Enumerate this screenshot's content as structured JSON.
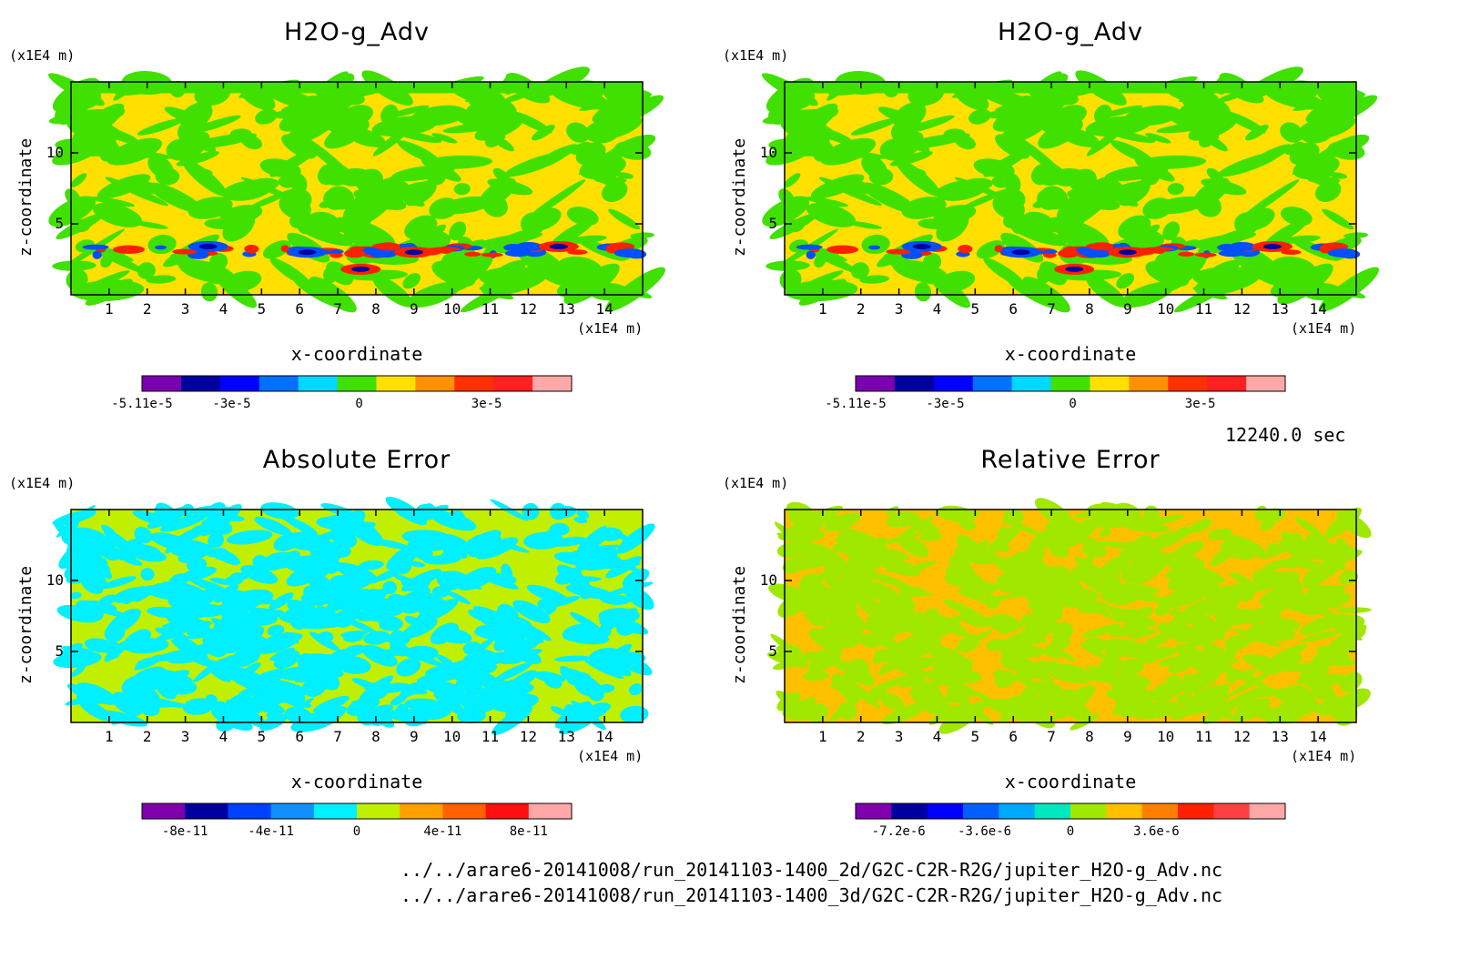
{
  "footer": {
    "line1": "../../arare6-20141008/run_20141103-1400_2d/G2C-C2R-R2G/jupiter_H2O-g_Adv.nc",
    "line2": "../../arare6-20141008/run_20141103-1400_3d/G2C-C2R-R2G/jupiter_H2O-g_Adv.nc"
  },
  "time_label": "12240.0 sec",
  "chart_data": [
    {
      "type": "heatmap",
      "title": "H2O-g_Adv",
      "xlabel": "x-coordinate",
      "ylabel": "z-coordinate",
      "x_unit": "(x1E4 m)",
      "y_unit": "(x1E4 m)",
      "xlim": [
        0,
        15
      ],
      "ylim": [
        0,
        15
      ],
      "x_ticks": [
        "1",
        "2",
        "3",
        "4",
        "5",
        "6",
        "7",
        "8",
        "9",
        "10",
        "11",
        "12",
        "13",
        "14"
      ],
      "y_ticks": [
        "5",
        "10"
      ],
      "colorbar": {
        "colors": [
          "#7a00b0",
          "#0000a0",
          "#0000ff",
          "#0070ff",
          "#00d8ff",
          "#40e000",
          "#ffe000",
          "#ff9000",
          "#ff3000",
          "#ff2020",
          "#ffa8a8"
        ],
        "labels": [
          "-5.11e-5",
          "-3e-5",
          "0",
          "3e-5"
        ],
        "label_values": [
          -5.11e-05,
          -3e-05,
          0,
          3e-05
        ],
        "range": [
          -5.11e-05,
          5e-05
        ]
      },
      "palette": [
        "#40e000",
        "#ffe000"
      ],
      "band_colors": [
        "#ff2000",
        "#0050ff"
      ]
    },
    {
      "type": "heatmap",
      "title": "H2O-g_Adv",
      "xlabel": "x-coordinate",
      "ylabel": "z-coordinate",
      "x_unit": "(x1E4 m)",
      "y_unit": "(x1E4 m)",
      "xlim": [
        0,
        15
      ],
      "ylim": [
        0,
        15
      ],
      "x_ticks": [
        "1",
        "2",
        "3",
        "4",
        "5",
        "6",
        "7",
        "8",
        "9",
        "10",
        "11",
        "12",
        "13",
        "14"
      ],
      "y_ticks": [
        "5",
        "10"
      ],
      "colorbar": {
        "colors": [
          "#7a00b0",
          "#0000a0",
          "#0000ff",
          "#0070ff",
          "#00d8ff",
          "#40e000",
          "#ffe000",
          "#ff9000",
          "#ff3000",
          "#ff2020",
          "#ffa8a8"
        ],
        "labels": [
          "-5.11e-5",
          "-3e-5",
          "0",
          "3e-5"
        ],
        "label_values": [
          -5.11e-05,
          -3e-05,
          0,
          3e-05
        ],
        "range": [
          -5.11e-05,
          5e-05
        ]
      },
      "palette": [
        "#40e000",
        "#ffe000"
      ],
      "band_colors": [
        "#ff2000",
        "#0050ff"
      ]
    },
    {
      "type": "heatmap",
      "title": "Absolute Error",
      "xlabel": "x-coordinate",
      "ylabel": "z-coordinate",
      "x_unit": "(x1E4 m)",
      "y_unit": "(x1E4 m)",
      "xlim": [
        0,
        15
      ],
      "ylim": [
        0,
        15
      ],
      "x_ticks": [
        "1",
        "2",
        "3",
        "4",
        "5",
        "6",
        "7",
        "8",
        "9",
        "10",
        "11",
        "12",
        "13",
        "14"
      ],
      "y_ticks": [
        "5",
        "10"
      ],
      "colorbar": {
        "colors": [
          "#8000b0",
          "#0000a0",
          "#0040ff",
          "#1090ff",
          "#00f0ff",
          "#c0f000",
          "#ffa000",
          "#ff6000",
          "#ff1010",
          "#ffa8a8"
        ],
        "labels": [
          "-8e-11",
          "-4e-11",
          "0",
          "4e-11",
          "8e-11"
        ],
        "label_values": [
          -8e-11,
          -4e-11,
          0,
          4e-11,
          8e-11
        ],
        "range": [
          -1e-10,
          1e-10
        ]
      },
      "palette": [
        "#00f0ff",
        "#c0f000"
      ],
      "band_colors": []
    },
    {
      "type": "heatmap",
      "title": "Relative Error",
      "xlabel": "x-coordinate",
      "ylabel": "z-coordinate",
      "x_unit": "(x1E4 m)",
      "y_unit": "(x1E4 m)",
      "xlim": [
        0,
        15
      ],
      "ylim": [
        0,
        15
      ],
      "x_ticks": [
        "1",
        "2",
        "3",
        "4",
        "5",
        "6",
        "7",
        "8",
        "9",
        "10",
        "11",
        "12",
        "13",
        "14"
      ],
      "y_ticks": [
        "5",
        "10"
      ],
      "colorbar": {
        "colors": [
          "#8000b0",
          "#0000a0",
          "#0000ff",
          "#0060ff",
          "#00a8ff",
          "#00e8c0",
          "#a0e800",
          "#ffc000",
          "#ff8000",
          "#ff2000",
          "#ff4040",
          "#ffa8a8"
        ],
        "labels": [
          "-7.2e-6",
          "-3.6e-6",
          "0",
          "3.6e-6"
        ],
        "label_values": [
          -7.2e-06,
          -3.6e-06,
          0,
          3.6e-06
        ],
        "range": [
          -9e-06,
          9e-06
        ]
      },
      "palette": [
        "#a0e800",
        "#ffc000"
      ],
      "band_colors": []
    }
  ]
}
